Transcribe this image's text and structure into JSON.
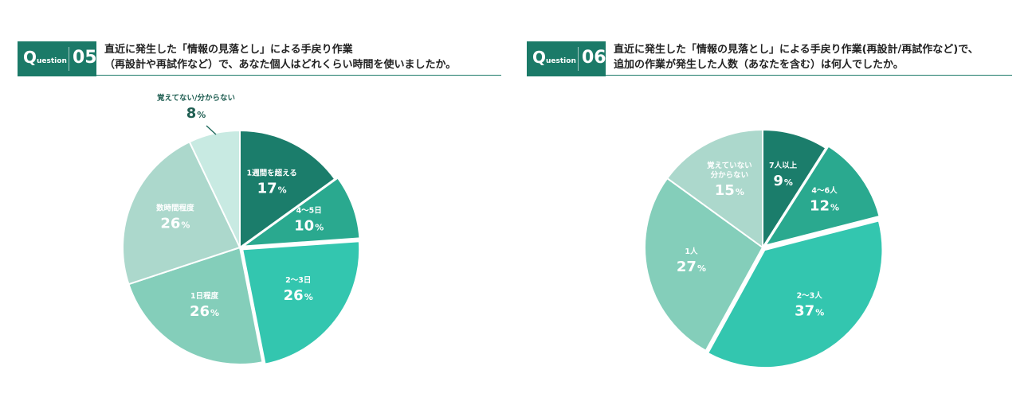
{
  "questions": [
    {
      "id": "q5",
      "badge": {
        "q": "Q",
        "label": "uestion",
        "number": "05"
      },
      "title_lines": [
        "直近に発生した「情報の見落とし」による手戻り作業",
        "（再設計や再試作など）で、あなた個人はどれくらい時間を使いましたか。"
      ]
    },
    {
      "id": "q6",
      "badge": {
        "q": "Q",
        "label": "uestion",
        "number": "06"
      },
      "title_lines": [
        "直近に発生した「情報の見落とし」による手戻り作業(再設計/再試作など)で、",
        "追加の作業が発生した人数（あなたを含む）は何人でしたか。"
      ]
    }
  ],
  "chart_data": [
    {
      "type": "pie",
      "title": "",
      "start_angle": 0,
      "direction": "clockwise",
      "unit": "%",
      "slices": [
        {
          "label": "1週間を超える",
          "value": 17,
          "color": "#1b7d6b",
          "label_color": "#ffffff",
          "exploded": false
        },
        {
          "label": "4〜5日",
          "value": 10,
          "color": "#2aa98f",
          "label_color": "#ffffff",
          "exploded": true
        },
        {
          "label": "2〜3日",
          "value": 26,
          "color": "#33c6af",
          "label_color": "#ffffff",
          "exploded": true
        },
        {
          "label": "1日程度",
          "value": 26,
          "color": "#84ceba",
          "label_color": "#ffffff",
          "exploded": false
        },
        {
          "label": "数時間程度",
          "value": 26,
          "color": "#acd8cc",
          "label_color": "#ffffff",
          "exploded": false
        },
        {
          "label": "覚えてない/分からない",
          "value": 8,
          "color": "#c8eae2",
          "label_color": "#1f5e52",
          "exploded": false,
          "outside": true
        }
      ]
    },
    {
      "type": "pie",
      "title": "",
      "start_angle": 0,
      "direction": "clockwise",
      "unit": "%",
      "slices": [
        {
          "label": "7人以上",
          "value": 9,
          "color": "#1b7d6b",
          "label_color": "#ffffff",
          "exploded": false
        },
        {
          "label": "4〜6人",
          "value": 12,
          "color": "#2aa98f",
          "label_color": "#ffffff",
          "exploded": true
        },
        {
          "label": "2〜3人",
          "value": 37,
          "color": "#33c6af",
          "label_color": "#ffffff",
          "exploded": true
        },
        {
          "label": "1人",
          "value": 27,
          "color": "#84ceba",
          "label_color": "#ffffff",
          "exploded": false
        },
        {
          "label": "覚えていない\n分からない",
          "value": 15,
          "color": "#acd8cc",
          "label_color": "#ffffff",
          "exploded": false
        }
      ]
    }
  ]
}
